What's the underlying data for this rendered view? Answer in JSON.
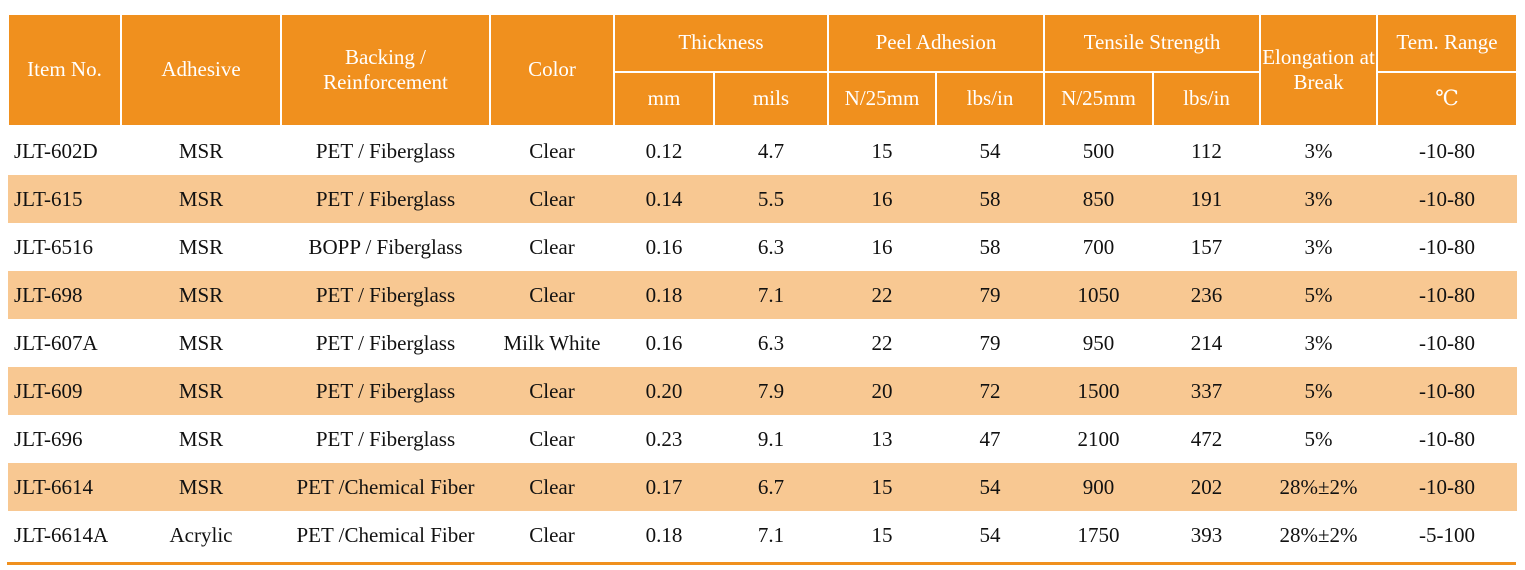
{
  "table": {
    "headers": {
      "item_no": "Item No.",
      "adhesive": "Adhesive",
      "backing": "Backing / Reinforcement",
      "color": "Color",
      "thickness": "Thickness",
      "thickness_mm": "mm",
      "thickness_mils": "mils",
      "peel_adhesion": "Peel Adhesion",
      "peel_n": "N/25mm",
      "peel_lbs": "lbs/in",
      "tensile_strength": "Tensile Strength",
      "tensile_n": "N/25mm",
      "tensile_lbs": "lbs/in",
      "elongation": "Elongation at Break",
      "temp_range": "Tem. Range",
      "temp_unit": "℃"
    },
    "rows": [
      [
        "JLT-602D",
        "MSR",
        "PET / Fiberglass",
        "Clear",
        "0.12",
        "4.7",
        "15",
        "54",
        "500",
        "112",
        "3%",
        "-10-80"
      ],
      [
        "JLT-615",
        "MSR",
        "PET / Fiberglass",
        "Clear",
        "0.14",
        "5.5",
        "16",
        "58",
        "850",
        "191",
        "3%",
        "-10-80"
      ],
      [
        "JLT-6516",
        "MSR",
        "BOPP / Fiberglass",
        "Clear",
        "0.16",
        "6.3",
        "16",
        "58",
        "700",
        "157",
        "3%",
        "-10-80"
      ],
      [
        "JLT-698",
        "MSR",
        "PET / Fiberglass",
        "Clear",
        "0.18",
        "7.1",
        "22",
        "79",
        "1050",
        "236",
        "5%",
        "-10-80"
      ],
      [
        "JLT-607A",
        "MSR",
        "PET / Fiberglass",
        "Milk White",
        "0.16",
        "6.3",
        "22",
        "79",
        "950",
        "214",
        "3%",
        "-10-80"
      ],
      [
        "JLT-609",
        "MSR",
        "PET / Fiberglass",
        "Clear",
        "0.20",
        "7.9",
        "20",
        "72",
        "1500",
        "337",
        "5%",
        "-10-80"
      ],
      [
        "JLT-696",
        "MSR",
        "PET / Fiberglass",
        "Clear",
        "0.23",
        "9.1",
        "13",
        "47",
        "2100",
        "472",
        "5%",
        "-10-80"
      ],
      [
        "JLT-6614",
        "MSR",
        "PET /Chemical Fiber",
        "Clear",
        "0.17",
        "6.7",
        "15",
        "54",
        "900",
        "202",
        "28%±2%",
        "-10-80"
      ],
      [
        "JLT-6614A",
        "Acrylic",
        "PET /Chemical Fiber",
        "Clear",
        "0.18",
        "7.1",
        "15",
        "54",
        "1750",
        "393",
        "28%±2%",
        "-5-100"
      ]
    ]
  },
  "colors": {
    "header_bg": "#F0901E",
    "stripe_bg": "#F8C892",
    "rule": "#F0901E"
  }
}
